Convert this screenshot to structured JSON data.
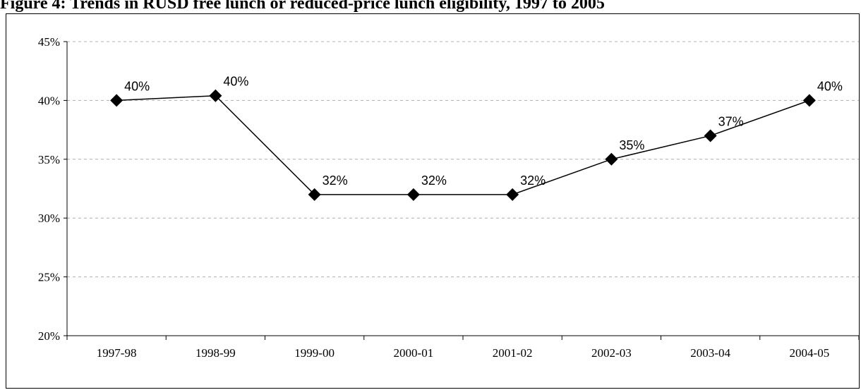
{
  "title": "Figure 4: Trends in RUSD free lunch or reduced-price lunch eligibility, 1997 to 2005",
  "chart_data": {
    "type": "line",
    "title": "Figure 4: Trends in RUSD free lunch or reduced-price lunch eligibility, 1997 to 2005",
    "categories": [
      "1997-98",
      "1998-99",
      "1999-00",
      "2000-01",
      "2001-02",
      "2002-03",
      "2003-04",
      "2004-05"
    ],
    "series": [
      {
        "values": [
          40,
          40.4,
          32,
          32,
          32,
          35,
          37,
          40
        ],
        "data_labels": [
          "40%",
          "40%",
          "32%",
          "32%",
          "32%",
          "35%",
          "37%",
          "40%"
        ],
        "color": "#000000",
        "marker": "diamond"
      }
    ],
    "xlabel": "",
    "ylabel": "",
    "ylim": [
      20,
      45
    ],
    "yticks": [
      20,
      25,
      30,
      35,
      40,
      45
    ],
    "ytick_labels": [
      "20%",
      "25%",
      "30%",
      "35%",
      "40%",
      "45%"
    ],
    "grid": "horizontal dashed",
    "legend": "none"
  }
}
